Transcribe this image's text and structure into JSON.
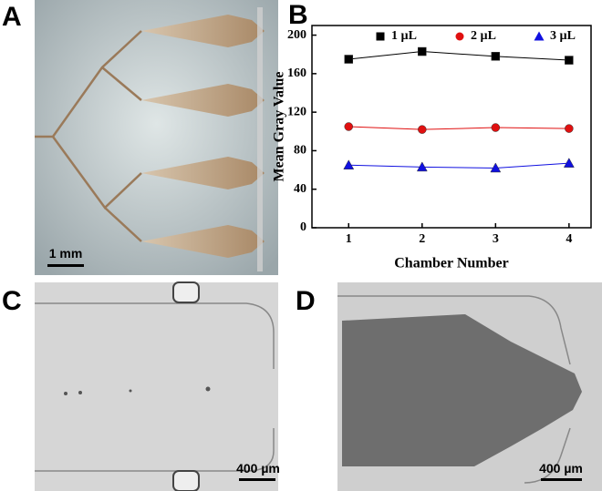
{
  "panels": {
    "a": {
      "label": "A",
      "scale_bar": "1 mm"
    },
    "b": {
      "label": "B"
    },
    "c": {
      "label": "C",
      "scale_bar": "400 µm"
    },
    "d": {
      "label": "D",
      "scale_bar": "400 µm"
    }
  },
  "chart_data": {
    "type": "line",
    "x_label": "Chamber Number",
    "y_label": "Mean Gray Value",
    "x": [
      1,
      2,
      3,
      4
    ],
    "series": [
      {
        "name": "1 µL",
        "color": "#000000",
        "marker": "square",
        "values": [
          175,
          183,
          178,
          174
        ]
      },
      {
        "name": "2 µL",
        "color": "#e01010",
        "marker": "circle",
        "values": [
          105,
          102,
          104,
          103
        ]
      },
      {
        "name": "3 µL",
        "color": "#1010e0",
        "marker": "triangle",
        "values": [
          65,
          63,
          62,
          67
        ]
      }
    ],
    "xlim": [
      0.5,
      4.3
    ],
    "xticks": [
      1,
      2,
      3,
      4
    ],
    "ylim": [
      0,
      210
    ],
    "yticks": [
      0,
      40,
      80,
      120,
      160,
      200
    ],
    "legend": "top"
  }
}
